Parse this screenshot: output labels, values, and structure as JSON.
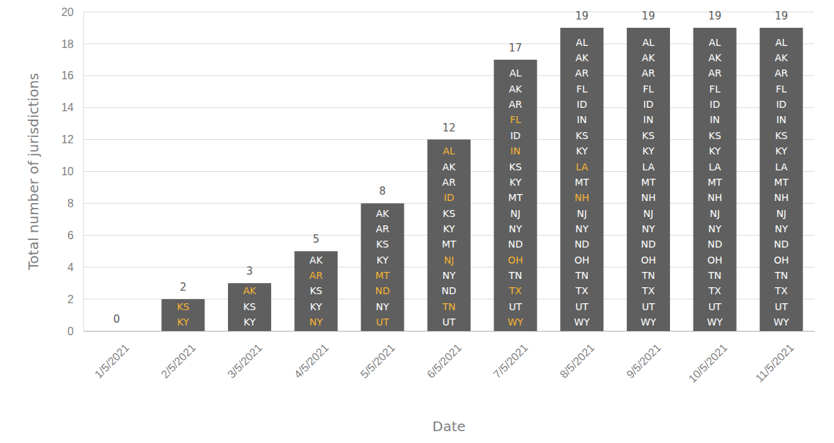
{
  "chart_data": {
    "type": "bar",
    "x_label": "Date",
    "y_label": "Total number of jurisdictions",
    "categories": [
      "1/5/2021",
      "2/5/2021",
      "3/5/2021",
      "4/5/2021",
      "5/5/2021",
      "6/5/2021",
      "7/5/2021",
      "8/5/2021",
      "9/5/2021",
      "10/5/2021",
      "11/5/2021"
    ],
    "values": [
      0,
      2,
      3,
      5,
      8,
      12,
      17,
      19,
      19,
      19,
      19
    ],
    "color": "#5f5f5f",
    "ylim": [
      0,
      20
    ],
    "yticks": [
      0,
      2,
      4,
      6,
      8,
      10,
      12,
      14,
      16,
      18,
      20
    ],
    "grid": true,
    "data_labels": true,
    "annotations": [
      [],
      [
        {
          "text": "KS",
          "color": "#f5b335"
        },
        {
          "text": "KY",
          "color": "#f5b335"
        }
      ],
      [
        {
          "text": "AK",
          "color": "#f5b335"
        },
        {
          "text": "KS",
          "color": "#ffffff"
        },
        {
          "text": "KY",
          "color": "#ffffff"
        }
      ],
      [
        {
          "text": "AK",
          "color": "#ffffff"
        },
        {
          "text": "AR",
          "color": "#f5b335"
        },
        {
          "text": "KS",
          "color": "#ffffff"
        },
        {
          "text": "KY",
          "color": "#ffffff"
        },
        {
          "text": "NY",
          "color": "#f5b335"
        }
      ],
      [
        {
          "text": "AK",
          "color": "#ffffff"
        },
        {
          "text": "AR",
          "color": "#ffffff"
        },
        {
          "text": "KS",
          "color": "#ffffff"
        },
        {
          "text": "KY",
          "color": "#ffffff"
        },
        {
          "text": "MT",
          "color": "#f5b335"
        },
        {
          "text": "ND",
          "color": "#f5b335"
        },
        {
          "text": "NY",
          "color": "#ffffff"
        },
        {
          "text": "UT",
          "color": "#f5b335"
        }
      ],
      [
        {
          "text": "AL",
          "color": "#f5b335"
        },
        {
          "text": "AK",
          "color": "#ffffff"
        },
        {
          "text": "AR",
          "color": "#ffffff"
        },
        {
          "text": "ID",
          "color": "#f5b335"
        },
        {
          "text": "KS",
          "color": "#ffffff"
        },
        {
          "text": "KY",
          "color": "#ffffff"
        },
        {
          "text": "MT",
          "color": "#ffffff"
        },
        {
          "text": "NJ",
          "color": "#f5b335"
        },
        {
          "text": "NY",
          "color": "#ffffff"
        },
        {
          "text": "ND",
          "color": "#ffffff"
        },
        {
          "text": "TN",
          "color": "#f5b335"
        },
        {
          "text": "UT",
          "color": "#ffffff"
        }
      ],
      [
        {
          "text": "AL",
          "color": "#ffffff"
        },
        {
          "text": "AK",
          "color": "#ffffff"
        },
        {
          "text": "AR",
          "color": "#ffffff"
        },
        {
          "text": "FL",
          "color": "#f5b335"
        },
        {
          "text": "ID",
          "color": "#ffffff"
        },
        {
          "text": "IN",
          "color": "#f5b335"
        },
        {
          "text": "KS",
          "color": "#ffffff"
        },
        {
          "text": "KY",
          "color": "#ffffff"
        },
        {
          "text": "MT",
          "color": "#ffffff"
        },
        {
          "text": "NJ",
          "color": "#ffffff"
        },
        {
          "text": "NY",
          "color": "#ffffff"
        },
        {
          "text": "ND",
          "color": "#ffffff"
        },
        {
          "text": "OH",
          "color": "#f5b335"
        },
        {
          "text": "TN",
          "color": "#ffffff"
        },
        {
          "text": "TX",
          "color": "#f5b335"
        },
        {
          "text": "UT",
          "color": "#ffffff"
        },
        {
          "text": "WY",
          "color": "#f5b335"
        }
      ],
      [
        {
          "text": "AL",
          "color": "#ffffff"
        },
        {
          "text": "AK",
          "color": "#ffffff"
        },
        {
          "text": "AR",
          "color": "#ffffff"
        },
        {
          "text": "FL",
          "color": "#ffffff"
        },
        {
          "text": "ID",
          "color": "#ffffff"
        },
        {
          "text": "IN",
          "color": "#ffffff"
        },
        {
          "text": "KS",
          "color": "#ffffff"
        },
        {
          "text": "KY",
          "color": "#ffffff"
        },
        {
          "text": "LA",
          "color": "#f5b335"
        },
        {
          "text": "MT",
          "color": "#ffffff"
        },
        {
          "text": "NH",
          "color": "#f5b335"
        },
        {
          "text": "NJ",
          "color": "#ffffff"
        },
        {
          "text": "NY",
          "color": "#ffffff"
        },
        {
          "text": "ND",
          "color": "#ffffff"
        },
        {
          "text": "OH",
          "color": "#ffffff"
        },
        {
          "text": "TN",
          "color": "#ffffff"
        },
        {
          "text": "TX",
          "color": "#ffffff"
        },
        {
          "text": "UT",
          "color": "#ffffff"
        },
        {
          "text": "WY",
          "color": "#ffffff"
        }
      ],
      [
        {
          "text": "AL",
          "color": "#ffffff"
        },
        {
          "text": "AK",
          "color": "#ffffff"
        },
        {
          "text": "AR",
          "color": "#ffffff"
        },
        {
          "text": "FL",
          "color": "#ffffff"
        },
        {
          "text": "ID",
          "color": "#ffffff"
        },
        {
          "text": "IN",
          "color": "#ffffff"
        },
        {
          "text": "KS",
          "color": "#ffffff"
        },
        {
          "text": "KY",
          "color": "#ffffff"
        },
        {
          "text": "LA",
          "color": "#ffffff"
        },
        {
          "text": "MT",
          "color": "#ffffff"
        },
        {
          "text": "NH",
          "color": "#ffffff"
        },
        {
          "text": "NJ",
          "color": "#ffffff"
        },
        {
          "text": "NY",
          "color": "#ffffff"
        },
        {
          "text": "ND",
          "color": "#ffffff"
        },
        {
          "text": "OH",
          "color": "#ffffff"
        },
        {
          "text": "TN",
          "color": "#ffffff"
        },
        {
          "text": "TX",
          "color": "#ffffff"
        },
        {
          "text": "UT",
          "color": "#ffffff"
        },
        {
          "text": "WY",
          "color": "#ffffff"
        }
      ],
      [
        {
          "text": "AL",
          "color": "#ffffff"
        },
        {
          "text": "AK",
          "color": "#ffffff"
        },
        {
          "text": "AR",
          "color": "#ffffff"
        },
        {
          "text": "FL",
          "color": "#ffffff"
        },
        {
          "text": "ID",
          "color": "#ffffff"
        },
        {
          "text": "IN",
          "color": "#ffffff"
        },
        {
          "text": "KS",
          "color": "#ffffff"
        },
        {
          "text": "KY",
          "color": "#ffffff"
        },
        {
          "text": "LA",
          "color": "#ffffff"
        },
        {
          "text": "MT",
          "color": "#ffffff"
        },
        {
          "text": "NH",
          "color": "#ffffff"
        },
        {
          "text": "NJ",
          "color": "#ffffff"
        },
        {
          "text": "NY",
          "color": "#ffffff"
        },
        {
          "text": "ND",
          "color": "#ffffff"
        },
        {
          "text": "OH",
          "color": "#ffffff"
        },
        {
          "text": "TN",
          "color": "#ffffff"
        },
        {
          "text": "TX",
          "color": "#ffffff"
        },
        {
          "text": "UT",
          "color": "#ffffff"
        },
        {
          "text": "WY",
          "color": "#ffffff"
        }
      ],
      [
        {
          "text": "AL",
          "color": "#ffffff"
        },
        {
          "text": "AK",
          "color": "#ffffff"
        },
        {
          "text": "AR",
          "color": "#ffffff"
        },
        {
          "text": "FL",
          "color": "#ffffff"
        },
        {
          "text": "ID",
          "color": "#ffffff"
        },
        {
          "text": "IN",
          "color": "#ffffff"
        },
        {
          "text": "KS",
          "color": "#ffffff"
        },
        {
          "text": "KY",
          "color": "#ffffff"
        },
        {
          "text": "LA",
          "color": "#ffffff"
        },
        {
          "text": "MT",
          "color": "#ffffff"
        },
        {
          "text": "NH",
          "color": "#ffffff"
        },
        {
          "text": "NJ",
          "color": "#ffffff"
        },
        {
          "text": "NY",
          "color": "#ffffff"
        },
        {
          "text": "ND",
          "color": "#ffffff"
        },
        {
          "text": "OH",
          "color": "#ffffff"
        },
        {
          "text": "TN",
          "color": "#ffffff"
        },
        {
          "text": "TX",
          "color": "#ffffff"
        },
        {
          "text": "UT",
          "color": "#ffffff"
        },
        {
          "text": "WY",
          "color": "#ffffff"
        }
      ]
    ]
  }
}
